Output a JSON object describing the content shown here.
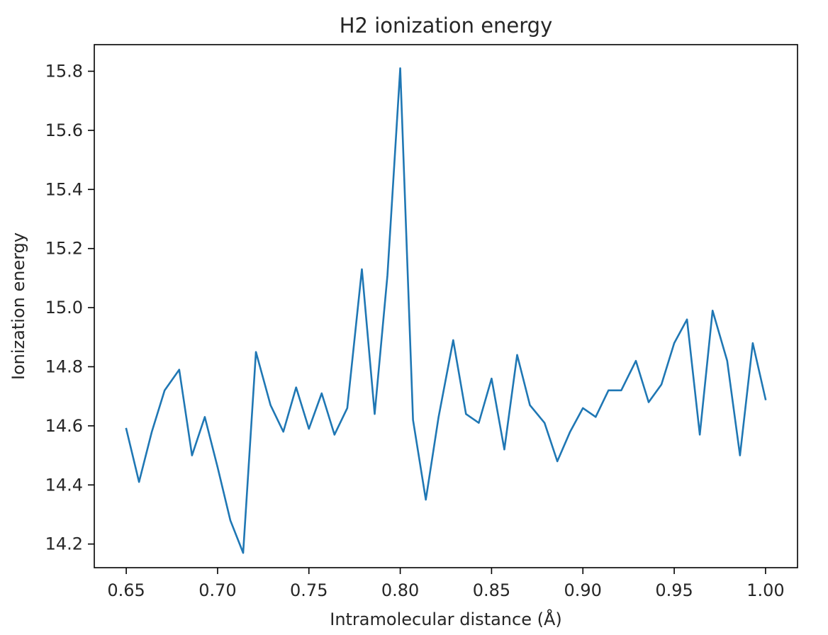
{
  "chart_data": {
    "type": "line",
    "title": "H2 ionization energy",
    "xlabel": "Intramolecular distance (Å)",
    "ylabel": "Ionization energy",
    "xlim": [
      0.6325,
      1.0175
    ],
    "ylim": [
      14.12,
      15.89
    ],
    "xticks": [
      0.65,
      0.7,
      0.75,
      0.8,
      0.85,
      0.9,
      0.95,
      1.0
    ],
    "xtick_labels": [
      "0.65",
      "0.70",
      "0.75",
      "0.80",
      "0.85",
      "0.90",
      "0.95",
      "1.00"
    ],
    "yticks": [
      14.2,
      14.4,
      14.6,
      14.8,
      15.0,
      15.2,
      15.4,
      15.6,
      15.8
    ],
    "ytick_labels": [
      "14.2",
      "14.4",
      "14.6",
      "14.8",
      "15.0",
      "15.2",
      "15.4",
      "15.6",
      "15.8"
    ],
    "grid": false,
    "series": [
      {
        "color": "#1f77b4",
        "x": [
          0.65,
          0.657,
          0.664,
          0.671,
          0.679,
          0.686,
          0.693,
          0.7,
          0.707,
          0.714,
          0.721,
          0.729,
          0.736,
          0.743,
          0.75,
          0.757,
          0.764,
          0.771,
          0.779,
          0.786,
          0.793,
          0.8,
          0.807,
          0.814,
          0.821,
          0.829,
          0.836,
          0.843,
          0.85,
          0.857,
          0.864,
          0.871,
          0.879,
          0.886,
          0.893,
          0.9,
          0.907,
          0.914,
          0.921,
          0.929,
          0.936,
          0.943,
          0.95,
          0.957,
          0.964,
          0.971,
          0.979,
          0.986,
          0.993,
          1.0
        ],
        "y": [
          14.59,
          14.41,
          14.58,
          14.72,
          14.79,
          14.5,
          14.63,
          14.46,
          14.28,
          14.17,
          14.85,
          14.67,
          14.58,
          14.73,
          14.59,
          14.71,
          14.57,
          14.66,
          15.13,
          14.64,
          15.11,
          15.81,
          14.62,
          14.35,
          14.63,
          14.89,
          14.64,
          14.61,
          14.76,
          14.52,
          14.84,
          14.67,
          14.61,
          14.48,
          14.58,
          14.66,
          14.63,
          14.72,
          14.72,
          14.82,
          14.68,
          14.74,
          14.88,
          14.96,
          14.57,
          14.99,
          14.82,
          14.5,
          14.88,
          14.69
        ]
      }
    ]
  }
}
